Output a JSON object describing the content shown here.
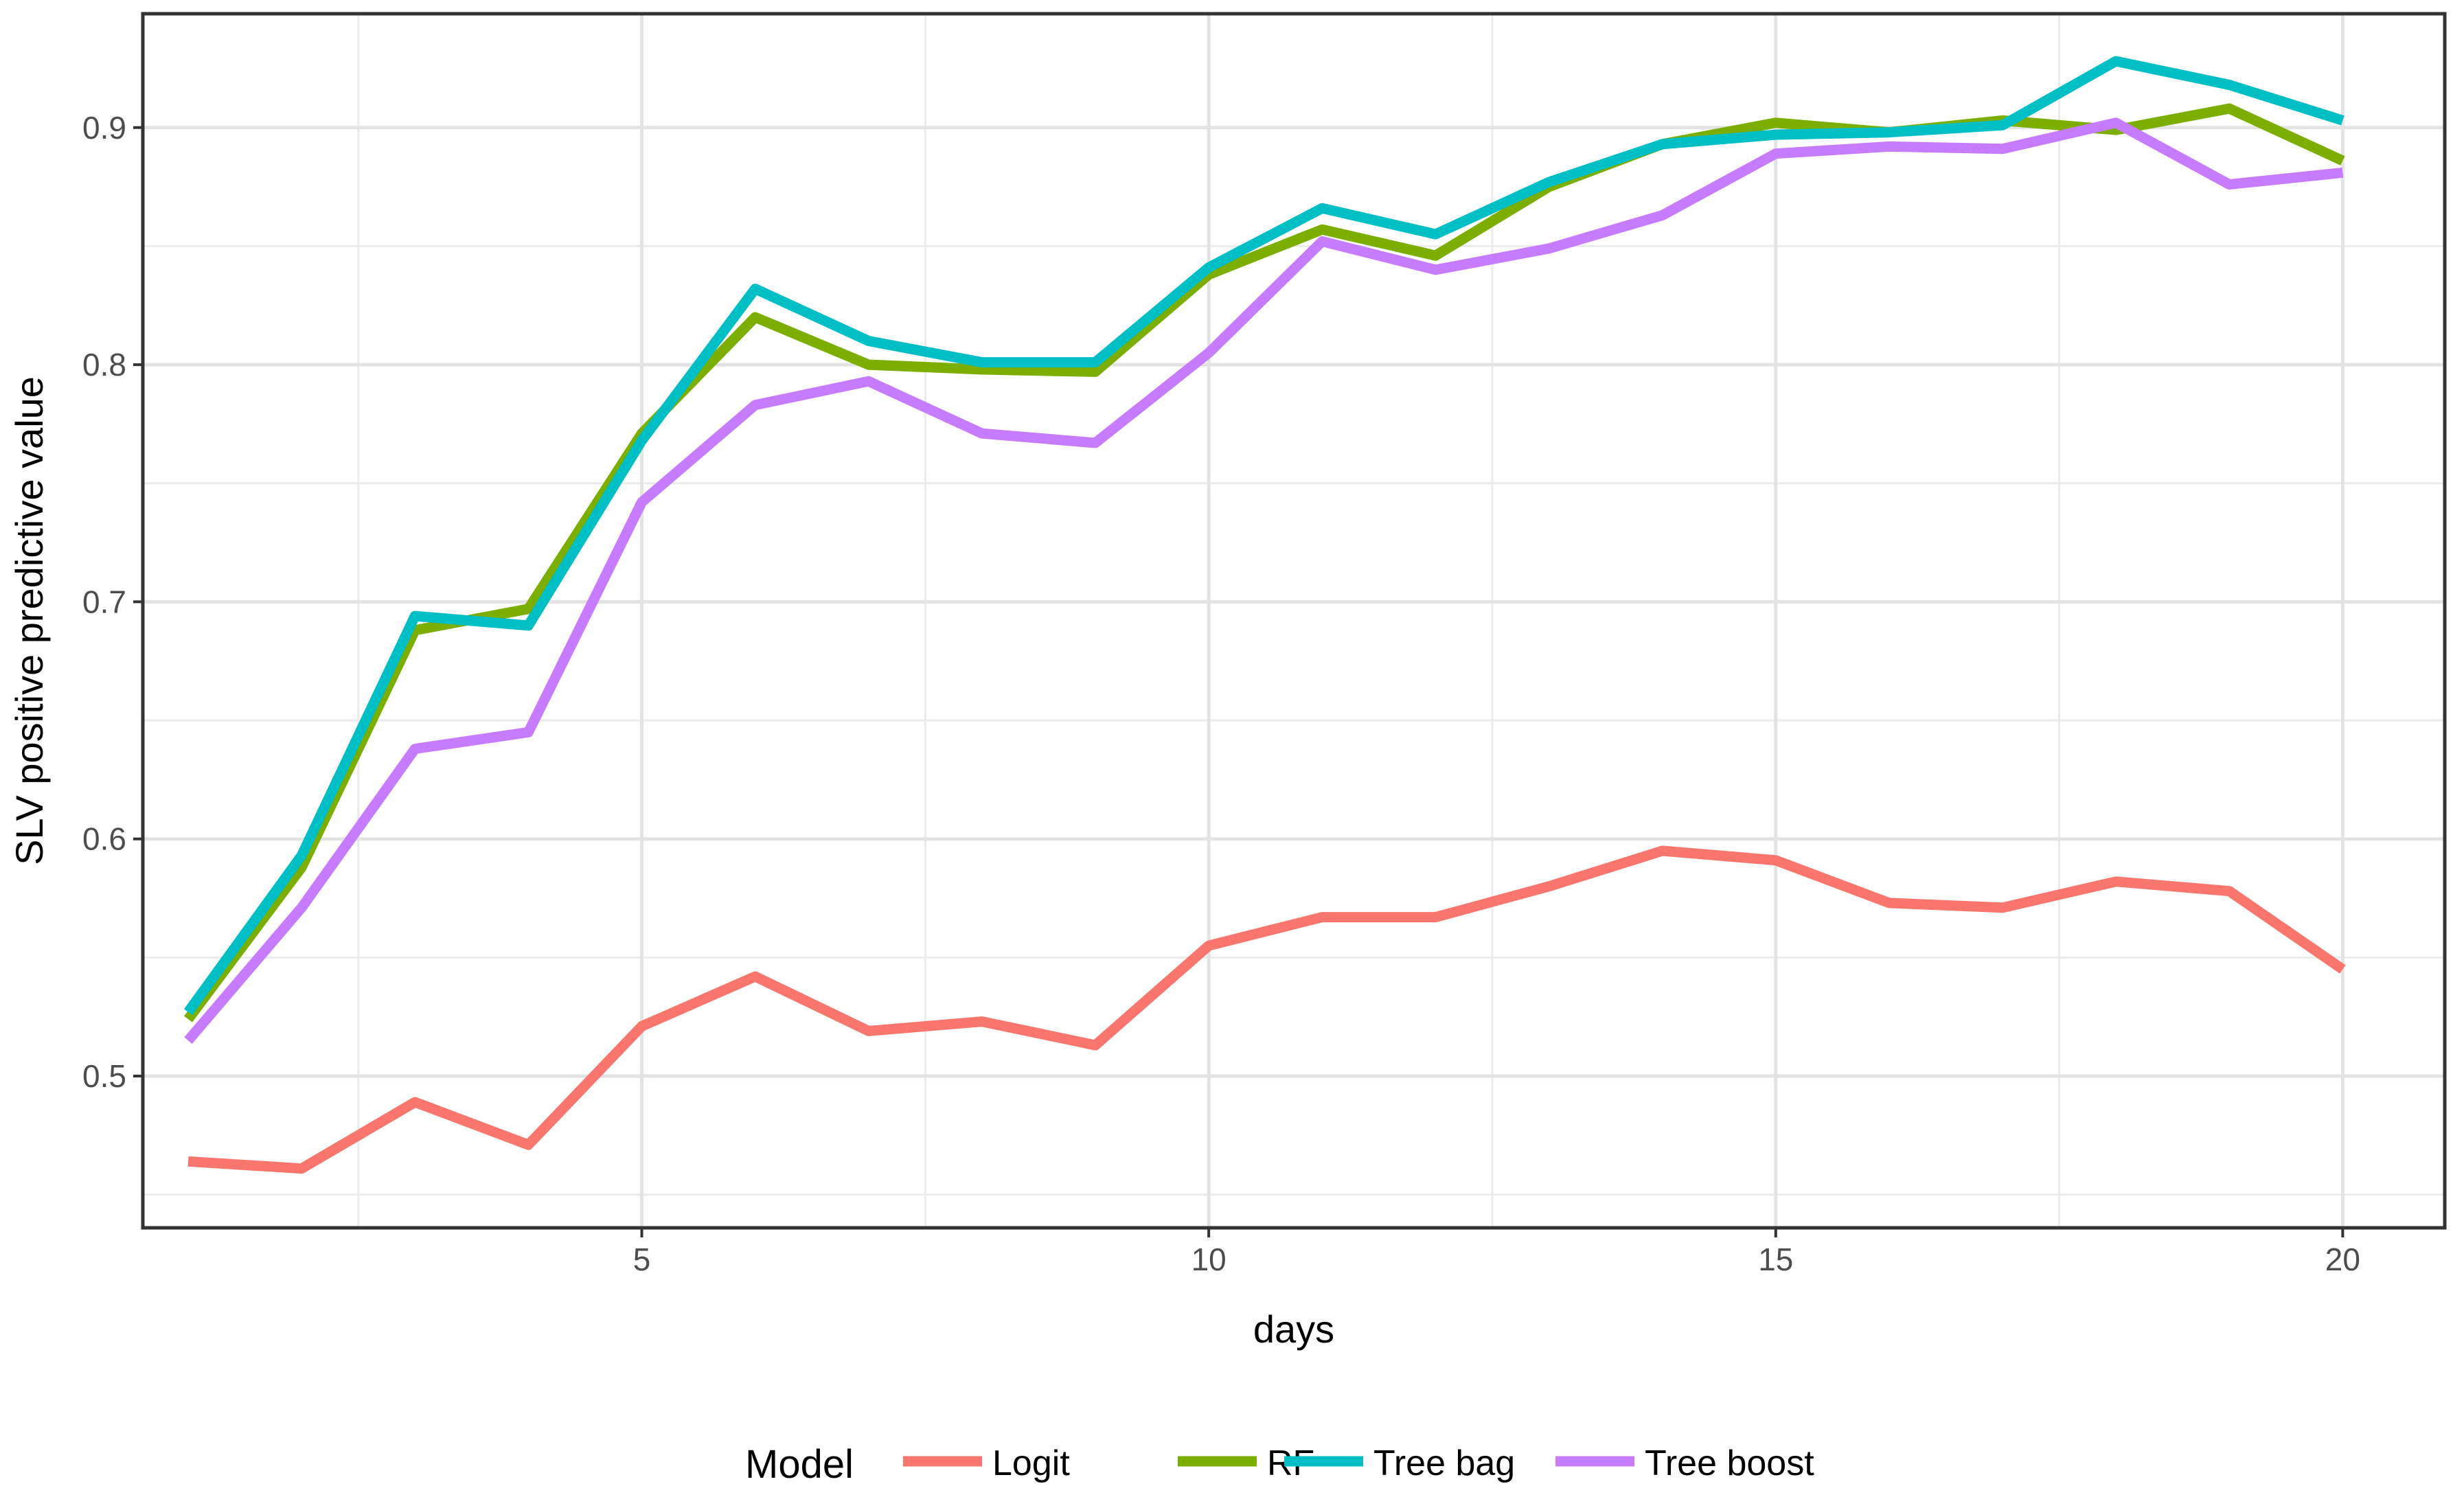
{
  "chart_data": {
    "type": "line",
    "xlabel": "days",
    "ylabel": "SLV positive predictive value",
    "xlim": [
      0.6,
      20.9
    ],
    "ylim": [
      0.436,
      0.948
    ],
    "x_ticks": [
      5,
      10,
      15,
      20
    ],
    "y_ticks": [
      0.5,
      0.6,
      0.7,
      0.8,
      0.9
    ],
    "grid": true,
    "legend": {
      "title": "Model",
      "position": "bottom"
    },
    "x": [
      1,
      2,
      3,
      4,
      5,
      6,
      7,
      8,
      9,
      10,
      11,
      12,
      13,
      14,
      15,
      16,
      17,
      18,
      19,
      20
    ],
    "series": [
      {
        "name": "Logit",
        "color": "#F8766D",
        "values": [
          0.464,
          0.461,
          0.489,
          0.471,
          0.521,
          0.542,
          0.519,
          0.523,
          0.513,
          0.555,
          0.567,
          0.567,
          0.58,
          0.595,
          0.591,
          0.573,
          0.571,
          0.582,
          0.578,
          0.545
        ]
      },
      {
        "name": "RF",
        "color": "#7CAE00",
        "values": [
          0.524,
          0.588,
          0.688,
          0.697,
          0.771,
          0.82,
          0.8,
          0.798,
          0.797,
          0.838,
          0.857,
          0.846,
          0.875,
          0.893,
          0.902,
          0.898,
          0.903,
          0.899,
          0.908,
          0.886
        ]
      },
      {
        "name": "Tree bag",
        "color": "#00BFC4",
        "values": [
          0.527,
          0.593,
          0.694,
          0.69,
          0.768,
          0.832,
          0.81,
          0.801,
          0.801,
          0.841,
          0.866,
          0.855,
          0.877,
          0.893,
          0.897,
          0.898,
          0.901,
          0.928,
          0.918,
          0.903
        ]
      },
      {
        "name": "Tree boost",
        "color": "#C77CFF",
        "values": [
          0.515,
          0.571,
          0.638,
          0.645,
          0.742,
          0.783,
          0.793,
          0.771,
          0.767,
          0.805,
          0.852,
          0.84,
          0.849,
          0.863,
          0.889,
          0.892,
          0.891,
          0.902,
          0.876,
          0.881
        ]
      }
    ]
  }
}
